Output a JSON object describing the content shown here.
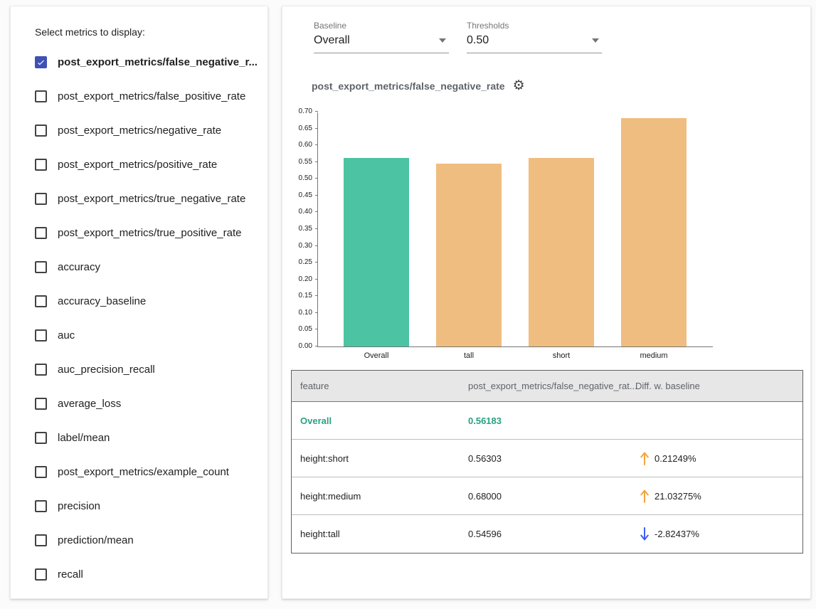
{
  "sidebar": {
    "title": "Select metrics to display:",
    "metrics": [
      {
        "label": "post_export_metrics/false_negative_r...",
        "checked": true
      },
      {
        "label": "post_export_metrics/false_positive_rate",
        "checked": false
      },
      {
        "label": "post_export_metrics/negative_rate",
        "checked": false
      },
      {
        "label": "post_export_metrics/positive_rate",
        "checked": false
      },
      {
        "label": "post_export_metrics/true_negative_rate",
        "checked": false
      },
      {
        "label": "post_export_metrics/true_positive_rate",
        "checked": false
      },
      {
        "label": "accuracy",
        "checked": false
      },
      {
        "label": "accuracy_baseline",
        "checked": false
      },
      {
        "label": "auc",
        "checked": false
      },
      {
        "label": "auc_precision_recall",
        "checked": false
      },
      {
        "label": "average_loss",
        "checked": false
      },
      {
        "label": "label/mean",
        "checked": false
      },
      {
        "label": "post_export_metrics/example_count",
        "checked": false
      },
      {
        "label": "precision",
        "checked": false
      },
      {
        "label": "prediction/mean",
        "checked": false
      },
      {
        "label": "recall",
        "checked": false
      }
    ]
  },
  "controls": {
    "baseline": {
      "label": "Baseline",
      "value": "Overall"
    },
    "thresholds": {
      "label": "Thresholds",
      "value": "0.50"
    }
  },
  "chart": {
    "title": "post_export_metrics/false_negative_rate"
  },
  "chart_data": {
    "type": "bar",
    "title": "post_export_metrics/false_negative_rate",
    "categories": [
      "Overall",
      "tall",
      "short",
      "medium"
    ],
    "values": [
      0.56183,
      0.54596,
      0.56303,
      0.68
    ],
    "bar_colors": [
      "#4cc3a3",
      "#f0bd80",
      "#f0bd80",
      "#f0bd80"
    ],
    "xlabel": "",
    "ylabel": "",
    "ylim": [
      0,
      0.7
    ],
    "ytick_step": 0.05,
    "grid": false,
    "legend": "none"
  },
  "table": {
    "headers": [
      "feature",
      "post_export_metrics/false_negative_rat...",
      "Diff. w. baseline"
    ],
    "rows": [
      {
        "feature": "Overall",
        "value": "0.56183",
        "diff": "",
        "direction": "none",
        "is_baseline": true
      },
      {
        "feature": "height:short",
        "value": "0.56303",
        "diff": "0.21249%",
        "direction": "up",
        "is_baseline": false
      },
      {
        "feature": "height:medium",
        "value": "0.68000",
        "diff": "21.03275%",
        "direction": "up",
        "is_baseline": false
      },
      {
        "feature": "height:tall",
        "value": "0.54596",
        "diff": "-2.82437%",
        "direction": "down",
        "is_baseline": false
      }
    ]
  },
  "colors": {
    "baseline_bar": "#4cc3a3",
    "slice_bar": "#f0bd80",
    "baseline_text": "#2aa183",
    "up_arrow": "#f2a53c",
    "down_arrow": "#3d5afe",
    "checkbox_checked": "#3f51b5"
  }
}
